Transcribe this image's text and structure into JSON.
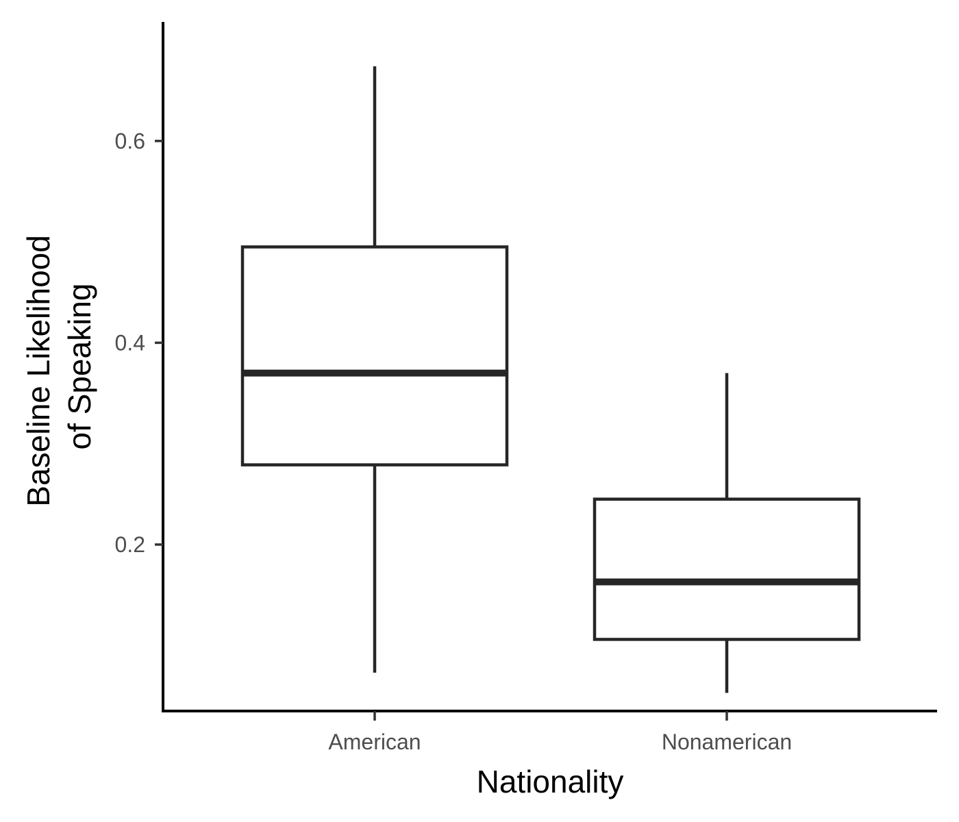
{
  "chart_data": {
    "type": "box",
    "xlabel": "Nationality",
    "ylabel_lines": [
      "Baseline Likelihood",
      "of Speaking"
    ],
    "categories": [
      "American",
      "Nonamerican"
    ],
    "boxes": [
      {
        "category": "American",
        "whisker_low": 0.073,
        "q1": 0.279,
        "median": 0.37,
        "q3": 0.495,
        "whisker_high": 0.674
      },
      {
        "category": "Nonamerican",
        "whisker_low": 0.053,
        "q1": 0.106,
        "median": 0.163,
        "q3": 0.245,
        "whisker_high": 0.37
      }
    ],
    "ylim": [
      0.035,
      0.718
    ],
    "yticks": [
      0.2,
      0.4,
      0.6
    ],
    "ytick_labels": [
      "0.2",
      "0.4",
      "0.6"
    ],
    "grid": false,
    "legend": "none",
    "colors": {
      "box_stroke": "#262626",
      "axis": "#000000",
      "tick_text": "#4d4d4d",
      "fill": "#ffffff"
    }
  }
}
